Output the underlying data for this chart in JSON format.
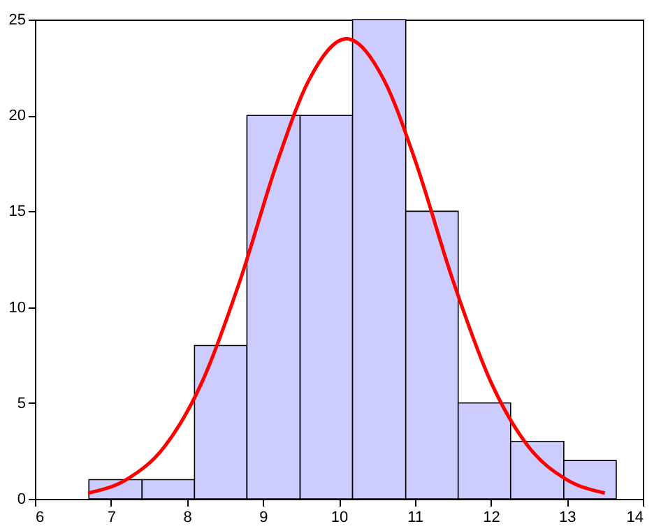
{
  "chart_data": {
    "type": "histogram",
    "xlim": [
      6,
      14
    ],
    "xticks": [
      6,
      7,
      8,
      9,
      10,
      11,
      12,
      13,
      14
    ],
    "ylim": [
      0,
      25
    ],
    "yticks": [
      0,
      5,
      10,
      15,
      20,
      25
    ],
    "grid": false,
    "series": [
      {
        "color": "#ccccff",
        "bins": [
          6.71,
          7.41,
          8.1,
          8.79,
          9.49,
          10.18,
          10.88,
          11.57,
          12.26,
          12.96,
          13.65
        ],
        "values": [
          1,
          1,
          8,
          20,
          20,
          25,
          15,
          5,
          3,
          2
        ]
      },
      {
        "type": "line",
        "color": "#ff0000",
        "line_style": "solid",
        "marker": "none",
        "x": [
          6.7,
          7.2,
          7.7,
          8.2,
          8.7,
          9.2,
          9.6,
          10.1,
          10.6,
          11.0,
          11.5,
          12.0,
          12.5,
          13.0,
          13.5
        ],
        "values": [
          0.3,
          1.0,
          2.7,
          6.1,
          11.4,
          17.7,
          21.8,
          24,
          21.8,
          17.7,
          11.4,
          6.1,
          2.7,
          1.0,
          0.3
        ]
      }
    ]
  }
}
